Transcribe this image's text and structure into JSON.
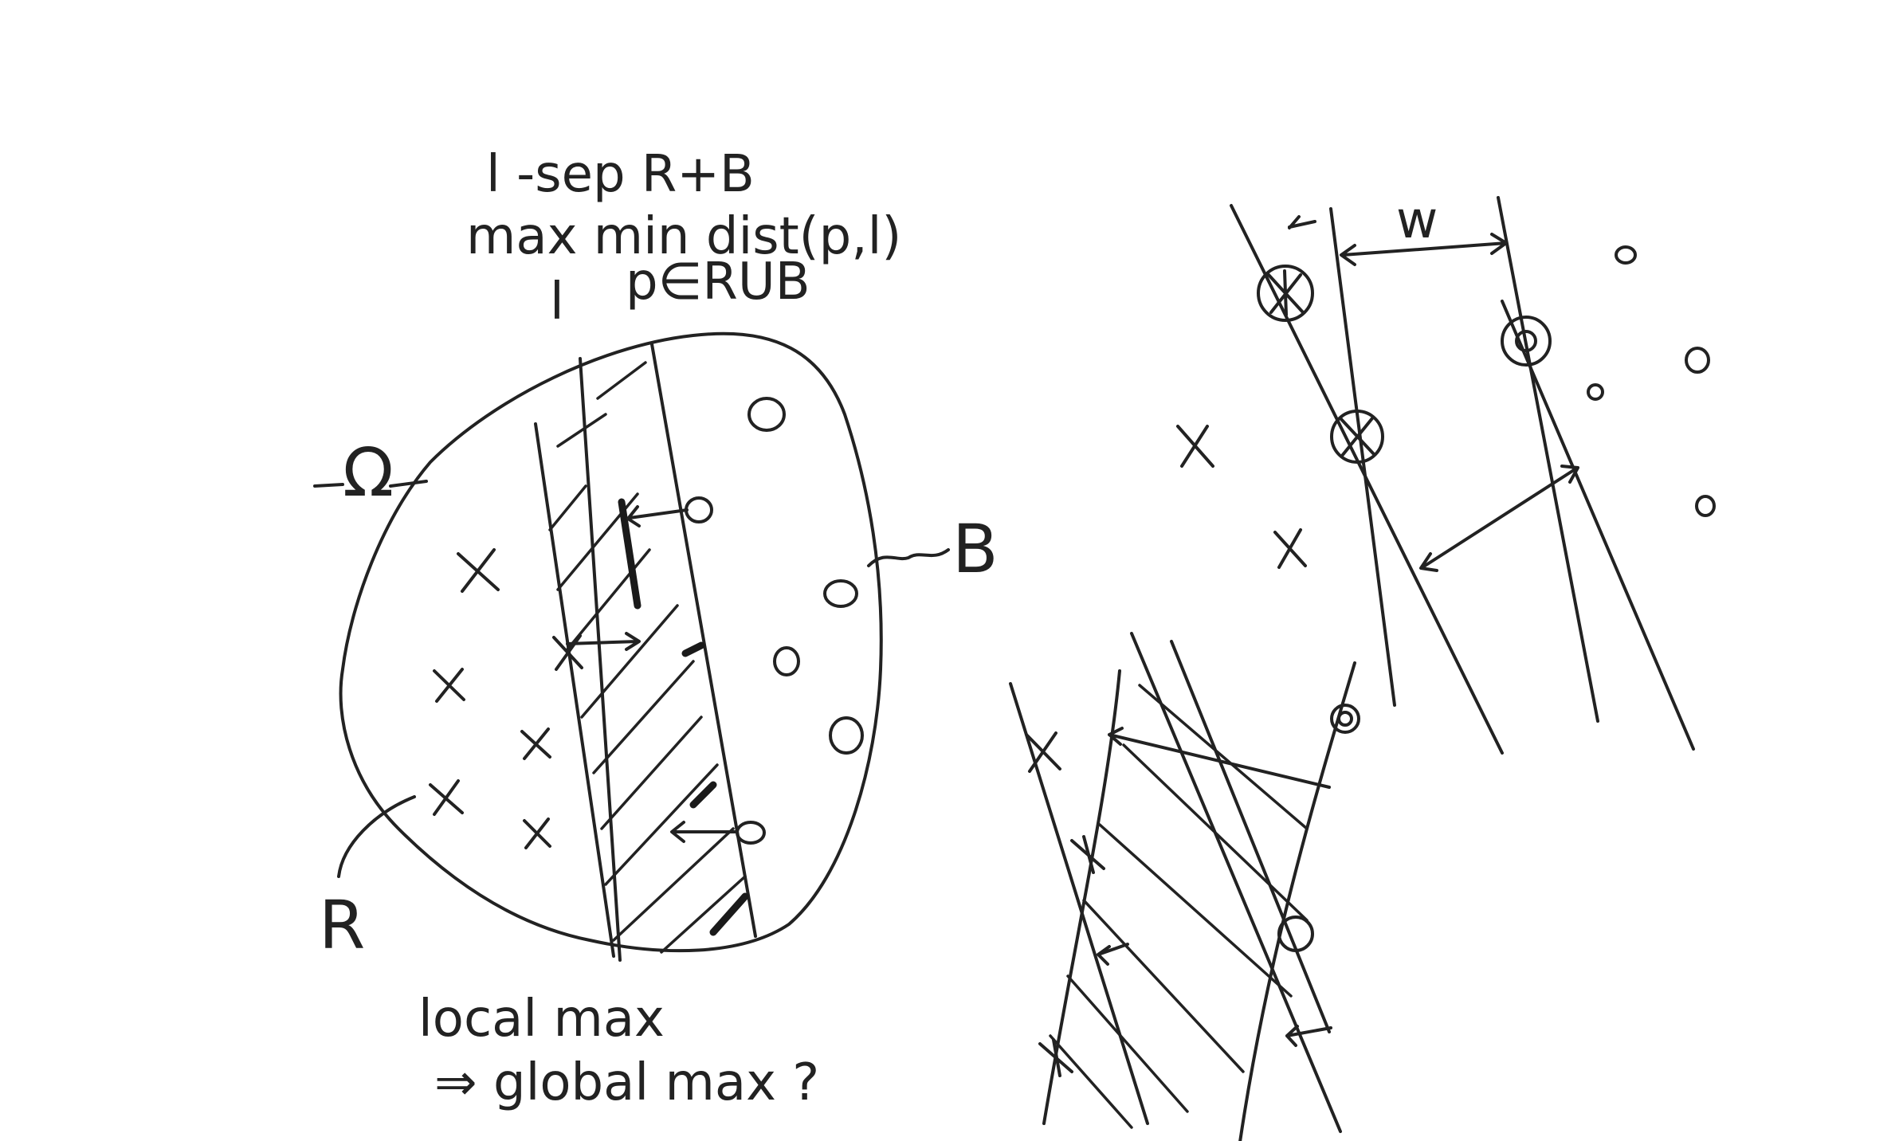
{
  "annotations": {
    "line1": "l -sep R+B",
    "line2": "max min dist(p,l)",
    "line3_l": "l",
    "line3_set": "p∈RUB",
    "omega": "Ω",
    "r_label": "R",
    "b_label": "B",
    "w_label": "w",
    "question_line1": "local max",
    "question_line2": "⇒ global max ?"
  },
  "colors": {
    "ink": "#222222",
    "background": "#ffffff"
  }
}
